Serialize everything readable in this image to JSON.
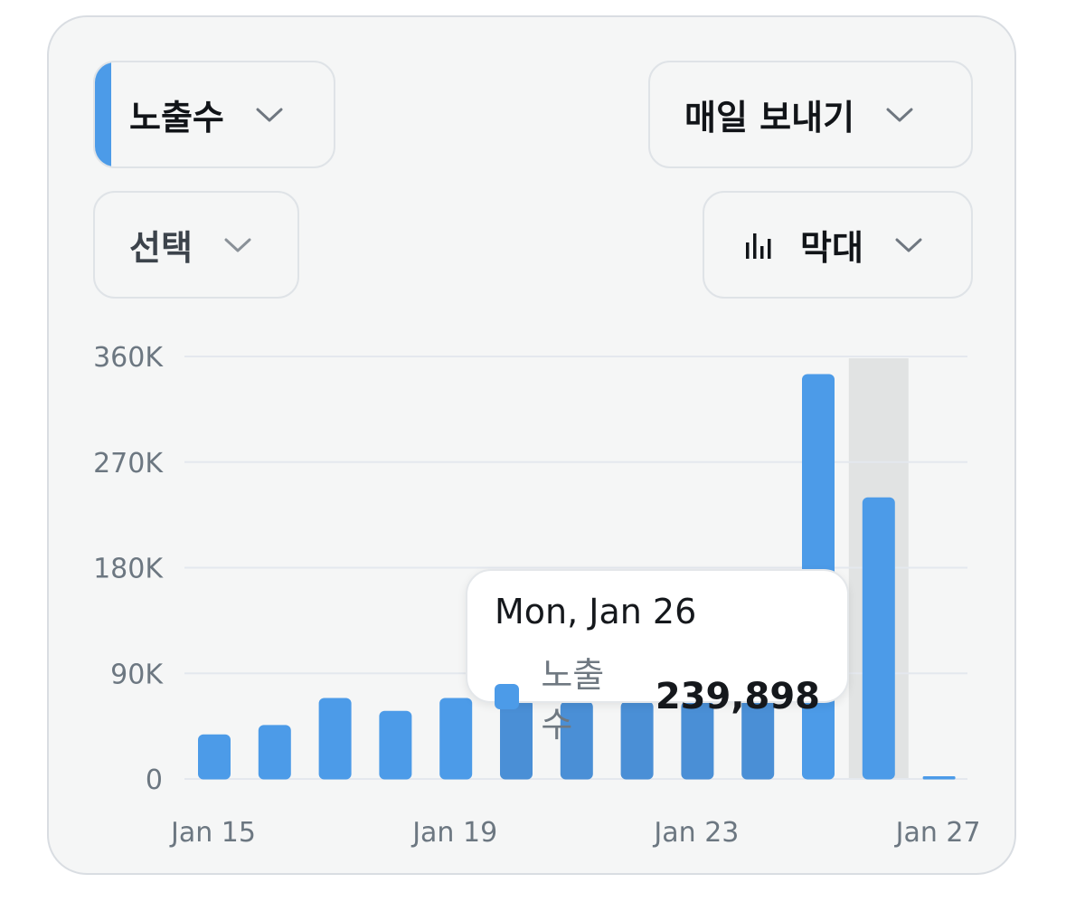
{
  "controls": {
    "metric_label": "노출수",
    "select_label": "선택",
    "send_label": "매일 보내기",
    "chart_type_label": "막대"
  },
  "colors": {
    "bar": "#4c9be8",
    "bar_dim": "#4a8fd6",
    "highlight": "#e1e3e3",
    "grid": "#e4e8ee",
    "tick_text": "#6c7781"
  },
  "icons": {
    "dropdown": "chevron-down-icon",
    "chart_type": "bar-chart-icon"
  },
  "tooltip": {
    "date": "Mon, Jan 26",
    "series": "노출수",
    "value": "239,898"
  },
  "chart_data": {
    "type": "bar",
    "categories": [
      "Jan 15",
      "Jan 16",
      "Jan 17",
      "Jan 18",
      "Jan 19",
      "Jan 20",
      "Jan 21",
      "Jan 22",
      "Jan 23",
      "Jan 24",
      "Jan 25",
      "Jan 26",
      "Jan 27"
    ],
    "x_tick_labels": [
      "Jan 15",
      "Jan 19",
      "Jan 23",
      "Jan 27"
    ],
    "series": [
      {
        "name": "노출수",
        "values": [
          38000,
          46000,
          69000,
          58000,
          69000,
          68000,
          66000,
          66000,
          66000,
          72000,
          345000,
          239898,
          2000
        ]
      }
    ],
    "y_ticks": [
      0,
      90000,
      180000,
      270000,
      360000
    ],
    "y_tick_labels": [
      "0",
      "90K",
      "180K",
      "270K",
      "360K"
    ],
    "ylim": [
      0,
      360000
    ],
    "highlighted_category": "Jan 26",
    "dimmed_under_tooltip": [
      "Jan 20",
      "Jan 21",
      "Jan 22",
      "Jan 23",
      "Jan 24"
    ],
    "grid": true
  }
}
